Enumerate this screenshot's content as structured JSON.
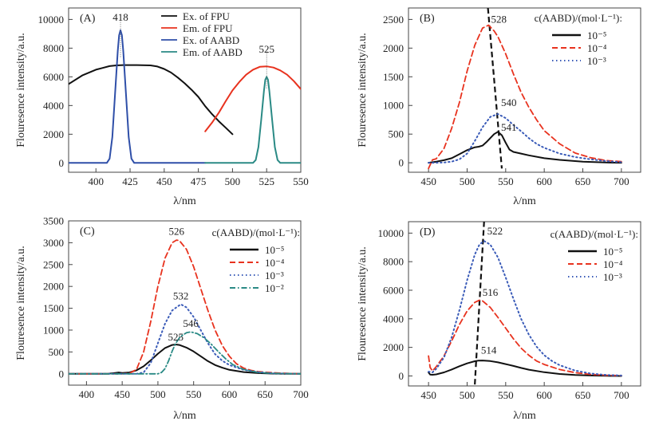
{
  "chart_data": [
    {
      "type": "line",
      "panel": "(A)",
      "xlabel": "λ/nm",
      "ylabel": "Flouresence intensity/a.u.",
      "xlim": [
        380,
        550
      ],
      "ylim": [
        -650,
        10800
      ],
      "xticks": [
        400,
        425,
        450,
        475,
        500,
        525,
        550
      ],
      "yticks": [
        0,
        2000,
        4000,
        6000,
        8000,
        10000
      ],
      "legend": "top-right",
      "legend_title": "",
      "series": [
        {
          "name": "Ex. of FPU",
          "color": "#111111",
          "dash": "solid",
          "x": [
            380,
            390,
            400,
            410,
            415,
            420,
            430,
            440,
            445,
            450,
            455,
            460,
            465,
            470,
            475,
            480,
            485,
            490,
            495,
            500
          ],
          "y": [
            5500,
            6100,
            6500,
            6750,
            6800,
            6820,
            6820,
            6800,
            6720,
            6550,
            6300,
            5950,
            5550,
            5100,
            4600,
            3950,
            3400,
            2900,
            2450,
            2000
          ]
        },
        {
          "name": "Em. of FPU",
          "color": "#e8321e",
          "dash": "solid",
          "x": [
            480,
            485,
            490,
            495,
            500,
            505,
            510,
            515,
            520,
            525,
            530,
            535,
            540,
            545,
            550
          ],
          "y": [
            2200,
            2800,
            3500,
            4300,
            5050,
            5650,
            6150,
            6500,
            6700,
            6730,
            6650,
            6450,
            6150,
            5700,
            5150
          ]
        },
        {
          "name": "Ex. of AABD",
          "color": "#2f4fa8",
          "dash": "solid",
          "x": [
            380,
            408,
            410,
            412,
            414,
            416,
            417,
            418,
            419,
            420,
            422,
            424,
            426,
            428,
            430,
            480
          ],
          "y": [
            0,
            0,
            300,
            1800,
            4800,
            7800,
            8900,
            9250,
            8900,
            7800,
            4800,
            1800,
            300,
            0,
            0,
            0
          ]
        },
        {
          "name": "Em. of AABD",
          "color": "#2a8a85",
          "dash": "solid",
          "x": [
            480,
            515,
            517,
            519,
            521,
            523,
            524,
            525,
            526,
            527,
            529,
            531,
            533,
            535,
            550
          ],
          "y": [
            0,
            0,
            200,
            1100,
            3000,
            5000,
            5800,
            6000,
            5800,
            5000,
            3000,
            1100,
            200,
            0,
            0
          ]
        }
      ],
      "annotations": [
        {
          "text": "418",
          "x": 418,
          "y": 9900
        },
        {
          "text": "525",
          "x": 525,
          "y": 7700
        }
      ]
    },
    {
      "type": "line",
      "panel": "(B)",
      "xlabel": "λ/nm",
      "ylabel": "Flouresence intensity/a.u.",
      "xlim": [
        424,
        725
      ],
      "ylim": [
        -165,
        2700
      ],
      "xticks": [
        450,
        500,
        550,
        600,
        650,
        700
      ],
      "yticks": [
        0,
        500,
        1000,
        1500,
        2000,
        2500
      ],
      "legend": "top-right",
      "legend_title": "c(AABD)/(mol·L⁻¹):",
      "series": [
        {
          "name": "10⁻⁵",
          "color": "#111111",
          "dash": "solid",
          "x": [
            450,
            460,
            470,
            480,
            490,
            500,
            510,
            515,
            520,
            525,
            530,
            535,
            540,
            545,
            550,
            555,
            560,
            570,
            580,
            600,
            620,
            650,
            680,
            700
          ],
          "y": [
            0,
            20,
            45,
            80,
            150,
            220,
            270,
            280,
            300,
            360,
            430,
            500,
            540,
            480,
            350,
            230,
            190,
            160,
            130,
            80,
            50,
            20,
            5,
            0
          ]
        },
        {
          "name": "10⁻⁴",
          "color": "#e8321e",
          "dash": "dash",
          "x": [
            450,
            455,
            460,
            470,
            480,
            490,
            500,
            510,
            520,
            528,
            535,
            540,
            550,
            560,
            570,
            580,
            590,
            600,
            620,
            640,
            660,
            680,
            700
          ],
          "y": [
            -100,
            50,
            70,
            250,
            600,
            1050,
            1600,
            2050,
            2350,
            2400,
            2300,
            2200,
            1900,
            1550,
            1230,
            970,
            750,
            560,
            330,
            170,
            90,
            40,
            20
          ]
        },
        {
          "name": "10⁻³",
          "color": "#3a5bb8",
          "dash": "dot",
          "x": [
            450,
            460,
            470,
            480,
            490,
            500,
            510,
            520,
            530,
            540,
            550,
            560,
            570,
            580,
            590,
            600,
            620,
            640,
            660,
            680,
            700
          ],
          "y": [
            0,
            0,
            5,
            20,
            60,
            160,
            380,
            620,
            800,
            850,
            780,
            660,
            550,
            430,
            330,
            260,
            160,
            100,
            60,
            30,
            10
          ]
        }
      ],
      "peak_shift_line": {
        "x": [
          527,
          545
        ],
        "y": [
          2700,
          -100
        ]
      },
      "annotations": [
        {
          "text": "528",
          "x": 531,
          "y": 2440
        },
        {
          "text": "540",
          "x": 544,
          "y": 990
        },
        {
          "text": "541",
          "x": 544,
          "y": 560
        }
      ]
    },
    {
      "type": "line",
      "panel": "(C)",
      "xlabel": "λ/nm",
      "ylabel": "Flouresence intensity/a.u.",
      "xlim": [
        375,
        700
      ],
      "ylim": [
        -260,
        3500
      ],
      "xticks": [
        400,
        450,
        500,
        550,
        600,
        650,
        700
      ],
      "yticks": [
        0,
        500,
        1000,
        1500,
        2000,
        2500,
        3000,
        3500
      ],
      "legend": "top-right",
      "legend_title": "c(AABD)/(mol·L⁻¹):",
      "series": [
        {
          "name": "10⁻⁵",
          "color": "#111111",
          "dash": "solid",
          "x": [
            375,
            430,
            440,
            445,
            450,
            460,
            470,
            480,
            490,
            500,
            510,
            520,
            525,
            530,
            540,
            550,
            560,
            570,
            580,
            590,
            600,
            620,
            640,
            660,
            680,
            700
          ],
          "y": [
            0,
            0,
            20,
            30,
            20,
            30,
            80,
            170,
            310,
            460,
            590,
            660,
            670,
            660,
            600,
            510,
            400,
            290,
            200,
            140,
            90,
            40,
            15,
            5,
            0,
            0
          ]
        },
        {
          "name": "10⁻⁴",
          "color": "#e8321e",
          "dash": "dash",
          "x": [
            375,
            450,
            460,
            470,
            480,
            490,
            500,
            510,
            520,
            526,
            530,
            540,
            550,
            560,
            570,
            580,
            590,
            600,
            610,
            620,
            630,
            640,
            650,
            660,
            680,
            700
          ],
          "y": [
            0,
            0,
            10,
            100,
            500,
            1200,
            2000,
            2650,
            3000,
            3060,
            3050,
            2850,
            2450,
            1950,
            1450,
            1000,
            650,
            400,
            230,
            130,
            80,
            50,
            35,
            25,
            10,
            0
          ]
        },
        {
          "name": "10⁻³",
          "color": "#3a5bb8",
          "dash": "dot",
          "x": [
            375,
            470,
            480,
            490,
            500,
            510,
            520,
            532,
            540,
            550,
            560,
            570,
            580,
            590,
            600,
            620,
            640,
            660,
            700
          ],
          "y": [
            0,
            0,
            30,
            250,
            700,
            1150,
            1450,
            1590,
            1520,
            1300,
            1000,
            700,
            450,
            300,
            200,
            90,
            40,
            10,
            0
          ]
        },
        {
          "name": "10⁻²",
          "color": "#2a8a85",
          "dash": "dashdot",
          "x": [
            375,
            500,
            505,
            510,
            515,
            520,
            525,
            530,
            535,
            540,
            546,
            555,
            565,
            575,
            585,
            595,
            605,
            620,
            640,
            660,
            700
          ],
          "y": [
            0,
            0,
            30,
            120,
            300,
            520,
            700,
            820,
            890,
            940,
            960,
            920,
            820,
            670,
            500,
            340,
            210,
            100,
            30,
            10,
            0
          ]
        }
      ],
      "annotations": [
        {
          "text": "526",
          "x": 526,
          "y": 3180
        },
        {
          "text": "532",
          "x": 532,
          "y": 1700
        },
        {
          "text": "546",
          "x": 546,
          "y": 1070
        },
        {
          "text": "525",
          "x": 525,
          "y": 760
        }
      ]
    },
    {
      "type": "line",
      "panel": "(D)",
      "xlabel": "λ/nm",
      "ylabel": "Flouresence intensity/a.u.",
      "xlim": [
        424,
        725
      ],
      "ylim": [
        -700,
        10800
      ],
      "xticks": [
        450,
        500,
        550,
        600,
        650,
        700
      ],
      "yticks": [
        0,
        2000,
        4000,
        6000,
        8000,
        10000
      ],
      "legend": "top-right",
      "legend_title": "c(AABD)/(mol·L⁻¹):",
      "series": [
        {
          "name": "10⁻⁵",
          "color": "#111111",
          "dash": "solid",
          "x": [
            450,
            452,
            455,
            460,
            470,
            480,
            490,
            500,
            510,
            514,
            520,
            530,
            540,
            550,
            560,
            570,
            580,
            600,
            620,
            640,
            660,
            680,
            700
          ],
          "y": [
            250,
            100,
            80,
            110,
            250,
            450,
            680,
            880,
            1030,
            1070,
            1080,
            1040,
            950,
            830,
            700,
            560,
            440,
            260,
            140,
            70,
            30,
            10,
            0
          ]
        },
        {
          "name": "10⁻⁴",
          "color": "#e8321e",
          "dash": "dash",
          "x": [
            450,
            452,
            455,
            460,
            470,
            480,
            490,
            500,
            510,
            516,
            520,
            530,
            540,
            550,
            560,
            570,
            580,
            590,
            600,
            620,
            640,
            660,
            680,
            700
          ],
          "y": [
            1400,
            600,
            350,
            650,
            1400,
            2450,
            3600,
            4550,
            5150,
            5300,
            5250,
            4800,
            4100,
            3350,
            2600,
            1950,
            1450,
            1050,
            800,
            450,
            230,
            110,
            50,
            20
          ]
        },
        {
          "name": "10⁻³",
          "color": "#3a5bb8",
          "dash": "dot",
          "x": [
            450,
            455,
            460,
            470,
            480,
            490,
            500,
            510,
            516,
            522,
            530,
            540,
            550,
            560,
            570,
            580,
            590,
            600,
            610,
            620,
            640,
            660,
            680,
            700
          ],
          "y": [
            300,
            250,
            500,
            1300,
            2700,
            4600,
            6700,
            8500,
            9200,
            9450,
            9200,
            8300,
            6900,
            5400,
            4000,
            2900,
            2050,
            1450,
            1050,
            750,
            380,
            170,
            70,
            30
          ]
        }
      ],
      "peak_shift_line": {
        "x": [
          510,
          522
        ],
        "y": [
          -600,
          10800
        ]
      },
      "annotations": [
        {
          "text": "522",
          "x": 526,
          "y": 9900
        },
        {
          "text": "516",
          "x": 520,
          "y": 5600
        },
        {
          "text": "514",
          "x": 518,
          "y": 1550
        }
      ]
    }
  ]
}
